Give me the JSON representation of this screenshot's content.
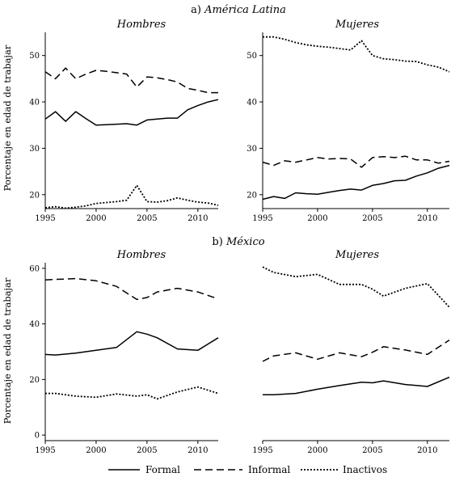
{
  "styles": {
    "formal": "solid",
    "informal": "dashed",
    "inactivos": "dotted",
    "line_color": "#000000"
  },
  "legend": {
    "formal": "Formal",
    "informal": "Informal",
    "inactivos": "Inactivos"
  },
  "chart_data": [
    {
      "type": "line",
      "section_title": "a) América Latina",
      "title": "Hombres",
      "ylabel": "Porcentaje en edad de trabajar",
      "xlim": [
        1995,
        2012
      ],
      "ylim": [
        17,
        55
      ],
      "xticks": [
        1995,
        2000,
        2005,
        2010
      ],
      "yticks": [
        20,
        30,
        40,
        50
      ],
      "x": [
        1995,
        1996,
        1997,
        1998,
        1999,
        2000,
        2001,
        2002,
        2003,
        2004,
        2005,
        2006,
        2007,
        2008,
        2009,
        2010,
        2011,
        2012
      ],
      "series": [
        {
          "key": "informal",
          "name": "Informal",
          "values": [
            46.5,
            45.0,
            47.3,
            45.0,
            46.0,
            46.8,
            46.6,
            46.3,
            46.0,
            43.2,
            45.4,
            45.2,
            44.8,
            44.3,
            42.9,
            42.5,
            42.0,
            42.0
          ]
        },
        {
          "key": "formal",
          "name": "Formal",
          "values": [
            36.3,
            37.9,
            35.8,
            37.9,
            36.4,
            35.0,
            35.1,
            35.2,
            35.3,
            35.0,
            36.1,
            36.3,
            36.5,
            36.5,
            38.3,
            39.2,
            40.0,
            40.5
          ]
        },
        {
          "key": "inactivos",
          "name": "Inactivos",
          "values": [
            17.2,
            17.4,
            17.1,
            17.3,
            17.6,
            18.1,
            18.3,
            18.5,
            18.8,
            22.0,
            18.5,
            18.4,
            18.7,
            19.3,
            18.8,
            18.4,
            18.2,
            17.7
          ]
        }
      ]
    },
    {
      "type": "line",
      "title": "Mujeres",
      "xlim": [
        1995,
        2012
      ],
      "ylim": [
        17,
        55
      ],
      "xticks": [
        1995,
        2000,
        2005,
        2010
      ],
      "yticks": [
        20,
        30,
        40,
        50
      ],
      "x": [
        1995,
        1996,
        1997,
        1998,
        1999,
        2000,
        2001,
        2002,
        2003,
        2004,
        2005,
        2006,
        2007,
        2008,
        2009,
        2010,
        2011,
        2012
      ],
      "series": [
        {
          "key": "inactivos",
          "name": "Inactivos",
          "values": [
            54.0,
            54.0,
            53.5,
            52.8,
            52.3,
            52.0,
            51.8,
            51.5,
            51.2,
            53.2,
            50.0,
            49.3,
            49.1,
            48.8,
            48.7,
            48.0,
            47.5,
            46.5
          ]
        },
        {
          "key": "informal",
          "name": "Informal",
          "values": [
            27.0,
            26.3,
            27.3,
            27.0,
            27.5,
            28.0,
            27.7,
            27.8,
            27.7,
            25.9,
            28.0,
            28.2,
            28.0,
            28.3,
            27.5,
            27.5,
            26.8,
            27.2
          ]
        },
        {
          "key": "formal",
          "name": "Formal",
          "values": [
            19.0,
            19.6,
            19.2,
            20.4,
            20.2,
            20.1,
            20.5,
            20.9,
            21.2,
            21.0,
            22.0,
            22.4,
            23.0,
            23.1,
            24.0,
            24.7,
            25.7,
            26.3
          ]
        }
      ]
    },
    {
      "type": "line",
      "section_title": "b) México",
      "title": "Hombres",
      "ylabel": "Porcentaje en edad de trabajar",
      "xlim": [
        1995,
        2012
      ],
      "ylim": [
        -2,
        62
      ],
      "xticks": [
        1995,
        2000,
        2005,
        2010
      ],
      "yticks": [
        0,
        20,
        40,
        60
      ],
      "x": [
        1995,
        1996,
        1998,
        2000,
        2002,
        2004,
        2005,
        2006,
        2008,
        2010,
        2012
      ],
      "series": [
        {
          "key": "informal",
          "name": "Informal",
          "values": [
            55.8,
            56.0,
            56.3,
            55.5,
            53.5,
            48.8,
            49.5,
            51.5,
            52.8,
            51.5,
            49.0
          ]
        },
        {
          "key": "formal",
          "name": "Formal",
          "values": [
            29.0,
            28.8,
            29.5,
            30.5,
            31.5,
            37.2,
            36.3,
            35.0,
            31.0,
            30.5,
            35.0
          ]
        },
        {
          "key": "inactivos",
          "name": "Inactivos",
          "values": [
            15.0,
            15.0,
            14.0,
            13.6,
            14.8,
            14.0,
            14.5,
            13.0,
            15.5,
            17.3,
            15.0
          ]
        }
      ]
    },
    {
      "type": "line",
      "title": "Mujeres",
      "xlim": [
        1995,
        2012
      ],
      "ylim": [
        -2,
        62
      ],
      "xticks": [
        1995,
        2000,
        2005,
        2010
      ],
      "yticks": [],
      "x": [
        1995,
        1996,
        1998,
        2000,
        2002,
        2004,
        2005,
        2006,
        2008,
        2010,
        2012
      ],
      "series": [
        {
          "key": "inactivos",
          "name": "Inactivos",
          "values": [
            60.5,
            58.5,
            57.0,
            57.8,
            54.2,
            54.2,
            52.5,
            50.0,
            52.8,
            54.5,
            46.0
          ]
        },
        {
          "key": "informal",
          "name": "Informal",
          "values": [
            26.5,
            28.5,
            29.6,
            27.3,
            29.6,
            28.2,
            29.8,
            31.8,
            30.6,
            29.0,
            34.2
          ]
        },
        {
          "key": "formal",
          "name": "Formal",
          "values": [
            14.5,
            14.5,
            15.0,
            16.5,
            17.8,
            19.0,
            18.8,
            19.5,
            18.2,
            17.5,
            20.8
          ]
        }
      ]
    }
  ]
}
